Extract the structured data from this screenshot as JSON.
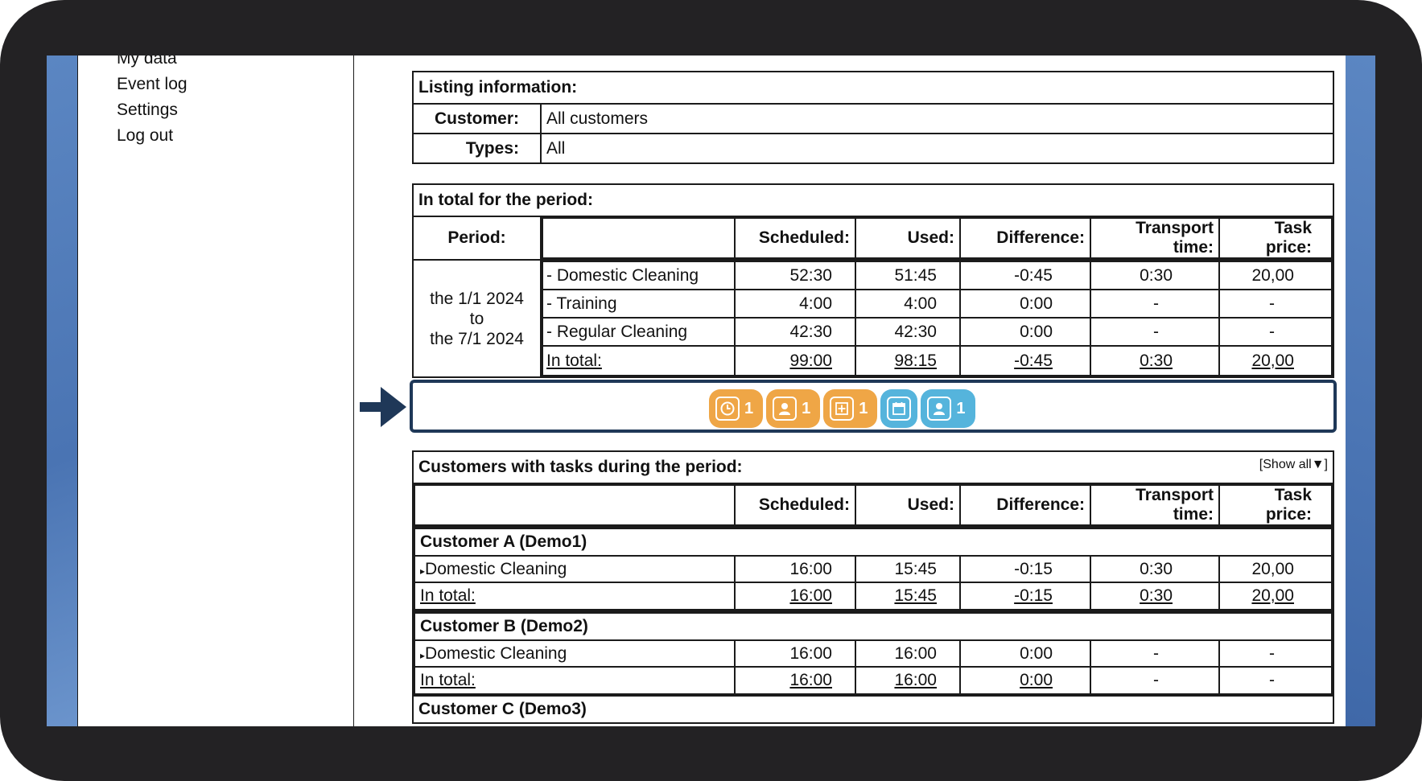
{
  "sidebar": {
    "items": [
      "My data",
      "Event log",
      "Settings",
      "Log out"
    ]
  },
  "listing": {
    "title": "Listing information:",
    "customer_label": "Customer:",
    "customer_value": "All customers",
    "types_label": "Types:",
    "types_value": "All"
  },
  "period_totals": {
    "title": "In total for the period:",
    "headers": {
      "period": "Period:",
      "scheduled": "Scheduled:",
      "used": "Used:",
      "difference": "Difference:",
      "transport": "Transport time:",
      "price": "Task price:"
    },
    "period_lines": [
      "the 1/1 2024",
      "to",
      "the 7/1 2024"
    ],
    "rows": [
      {
        "name": "- Domestic Cleaning",
        "scheduled": "52:30",
        "used": "51:45",
        "difference": "-0:45",
        "transport": "0:30",
        "price": "20,00"
      },
      {
        "name": "- Training",
        "scheduled": "4:00",
        "used": "4:00",
        "difference": "0:00",
        "transport": "-",
        "price": "-"
      },
      {
        "name": "- Regular Cleaning",
        "scheduled": "42:30",
        "used": "42:30",
        "difference": "0:00",
        "transport": "-",
        "price": "-"
      }
    ],
    "total": {
      "name": "In total:",
      "scheduled": "99:00",
      "used": "98:15",
      "difference": "-0:45",
      "transport": "0:30",
      "price": "20,00"
    }
  },
  "toolbar": {
    "badges": [
      {
        "icon": "clock-icon",
        "count": "1",
        "color": "#efa646"
      },
      {
        "icon": "person-icon",
        "count": "1",
        "color": "#efa646"
      },
      {
        "icon": "plus-box-icon",
        "count": "1",
        "color": "#efa646"
      },
      {
        "icon": "calendar-icon",
        "count": "",
        "color": "#55b4dc"
      },
      {
        "icon": "person-icon",
        "count": "1",
        "color": "#55b4dc"
      }
    ]
  },
  "customers": {
    "title": "Customers with tasks during the period:",
    "show_all": "[Show all",
    "headers": {
      "scheduled": "Scheduled:",
      "used": "Used:",
      "difference": "Difference:",
      "transport": "Transport time:",
      "price": "Task price:"
    },
    "groups": [
      {
        "name": "Customer A (Demo1)",
        "task": {
          "name": "Domestic Cleaning",
          "scheduled": "16:00",
          "used": "15:45",
          "difference": "-0:15",
          "transport": "0:30",
          "price": "20,00"
        },
        "total": {
          "name": "In total:",
          "scheduled": "16:00",
          "used": "15:45",
          "difference": "-0:15",
          "transport": "0:30",
          "price": "20,00"
        }
      },
      {
        "name": "Customer B (Demo2)",
        "task": {
          "name": "Domestic Cleaning",
          "scheduled": "16:00",
          "used": "16:00",
          "difference": "0:00",
          "transport": "-",
          "price": "-"
        },
        "total": {
          "name": "In total:",
          "scheduled": "16:00",
          "used": "16:00",
          "difference": "0:00",
          "transport": "-",
          "price": "-"
        }
      },
      {
        "name": "Customer C (Demo3)"
      }
    ]
  }
}
